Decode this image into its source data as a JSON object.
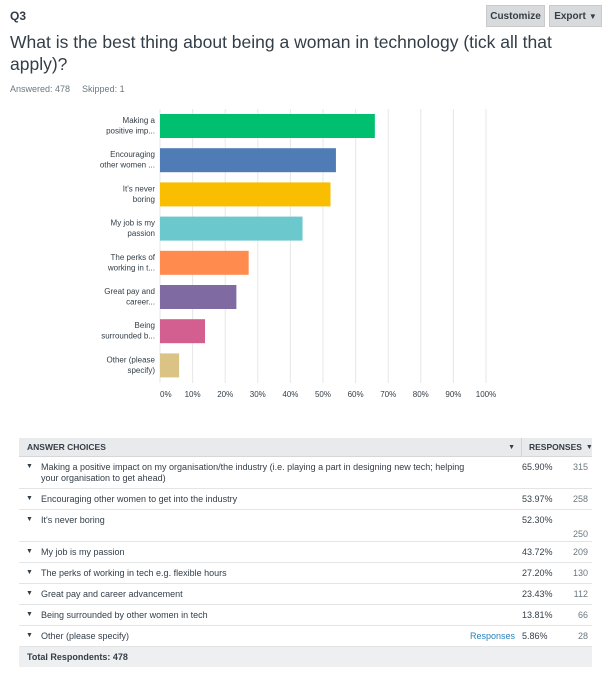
{
  "header": {
    "question_number": "Q3",
    "customize_label": "Customize",
    "export_label": "Export",
    "title": "What is the best thing about being a woman in technology (tick all that apply)?",
    "answered": "Answered: 478",
    "skipped": "Skipped: 1"
  },
  "colors": {
    "bars": [
      "#00bf6f",
      "#507cb6",
      "#f9be00",
      "#6bc8cd",
      "#ff8b4f",
      "#7f6aa1",
      "#d25f90",
      "#dbc385"
    ],
    "grid": "#e6e7e8"
  },
  "chart_data": {
    "type": "bar",
    "orientation": "horizontal",
    "categories": [
      "Making a positive imp...",
      "Encouraging other women ...",
      "It's never boring",
      "My job is my passion",
      "The perks of working in t...",
      "Great pay and career...",
      "Being surrounded b...",
      "Other (please specify)"
    ],
    "category_lines": [
      [
        "Making a",
        "positive imp..."
      ],
      [
        "Encouraging",
        "other women ..."
      ],
      [
        "It's never",
        "boring"
      ],
      [
        "My job is my",
        "passion"
      ],
      [
        "The perks of",
        "working in t..."
      ],
      [
        "Great pay and",
        "career..."
      ],
      [
        "Being",
        "surrounded b..."
      ],
      [
        "Other (please",
        "specify)"
      ]
    ],
    "values": [
      65.9,
      53.97,
      52.3,
      43.72,
      27.2,
      23.43,
      13.81,
      5.86
    ],
    "xlim": [
      0,
      100
    ],
    "ticks": [
      "0%",
      "10%",
      "20%",
      "30%",
      "40%",
      "50%",
      "60%",
      "70%",
      "80%",
      "90%",
      "100%"
    ],
    "grid": true,
    "title": "",
    "xlabel": "",
    "ylabel": ""
  },
  "table": {
    "col_choices": "ANSWER CHOICES",
    "col_responses": "RESPONSES",
    "rows": [
      {
        "label": "Making a positive impact on my organisation/the industry (i.e. playing a part in designing new tech; helping your organisation to get ahead)",
        "pct": "65.90%",
        "count": "315"
      },
      {
        "label": "Encouraging other women to get into the industry",
        "pct": "53.97%",
        "count": "258"
      },
      {
        "label": "It's never boring",
        "pct": "52.30%",
        "count": "250"
      },
      {
        "label": "My job is my passion",
        "pct": "43.72%",
        "count": "209"
      },
      {
        "label": "The perks of working in tech e.g. flexible hours",
        "pct": "27.20%",
        "count": "130"
      },
      {
        "label": "Great pay and career advancement",
        "pct": "23.43%",
        "count": "112"
      },
      {
        "label": "Being surrounded by other women in tech",
        "pct": "13.81%",
        "count": "66"
      },
      {
        "label": "Other (please specify)",
        "pct": "5.86%",
        "count": "28",
        "link": "Responses"
      }
    ],
    "total": "Total Respondents: 478"
  }
}
